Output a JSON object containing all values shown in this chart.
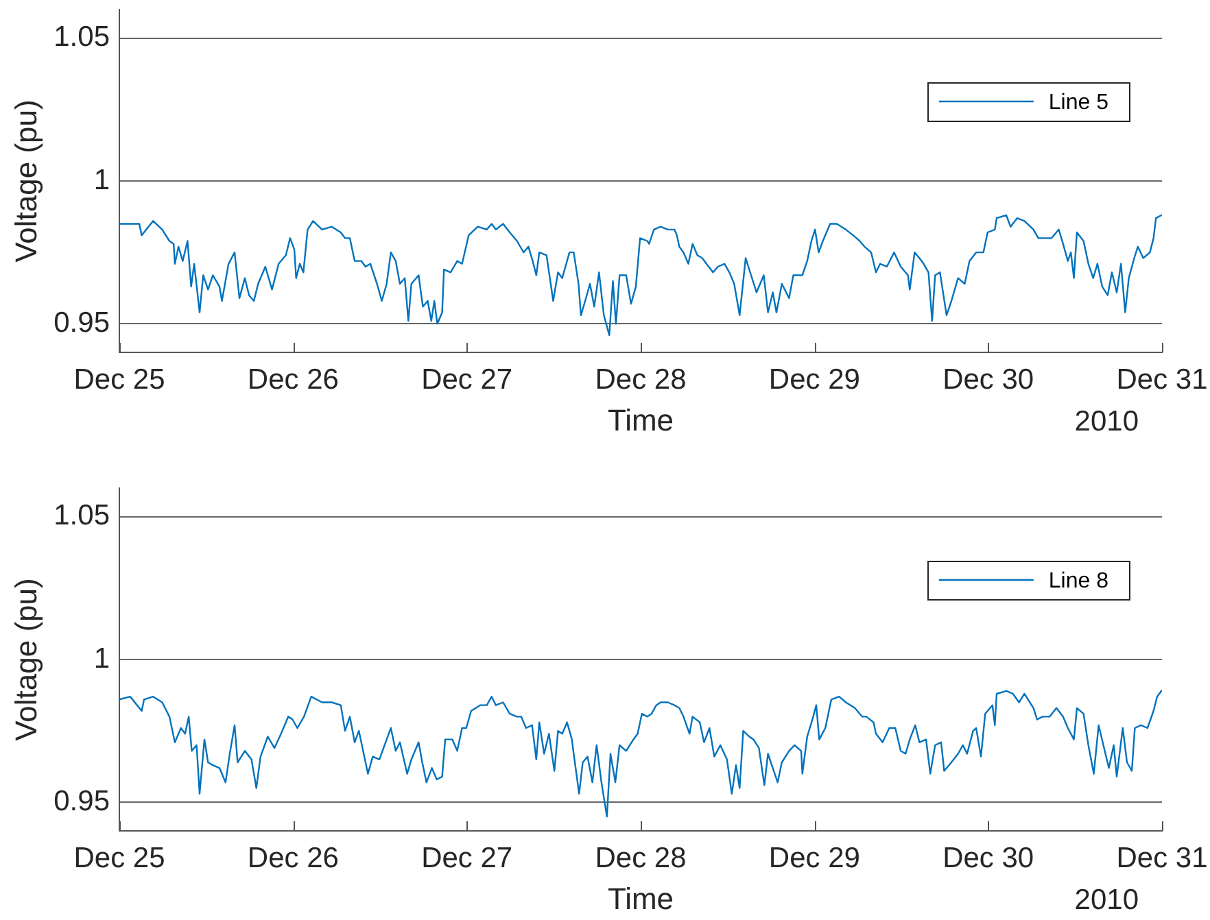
{
  "chart_data": [
    {
      "type": "line",
      "xlabel": "Time",
      "ylabel": "Voltage (pu)",
      "grid": "y",
      "legend": "top right",
      "annotations": [
        "2010"
      ],
      "xlim": [
        "2010-12-25",
        "2010-12-31"
      ],
      "xticks": [
        {
          "value": "2010-12-25",
          "label": "Dec 25"
        },
        {
          "value": "2010-12-26",
          "label": "Dec 26"
        },
        {
          "value": "2010-12-27",
          "label": "Dec 27"
        },
        {
          "value": "2010-12-28",
          "label": "Dec 28"
        },
        {
          "value": "2010-12-29",
          "label": "Dec 29"
        },
        {
          "value": "2010-12-30",
          "label": "Dec 30"
        },
        {
          "value": "2010-12-31",
          "label": "Dec 31"
        }
      ],
      "ylim": [
        0.94,
        1.06
      ],
      "yticks": [
        0.95,
        1,
        1.05
      ],
      "x": [
        "2010-12-25T00:00",
        "2010-12-25T01:30",
        "2010-12-25T02:45",
        "2010-12-25T03:05",
        "2010-12-25T04:40",
        "2010-12-25T05:55",
        "2010-12-25T06:55",
        "2010-12-25T07:30",
        "2010-12-25T07:40",
        "2010-12-25T08:10",
        "2010-12-25T08:45",
        "2010-12-25T09:25",
        "2010-12-25T09:55",
        "2010-12-25T10:20",
        "2010-12-25T11:05",
        "2010-12-25T11:35",
        "2010-12-25T12:15",
        "2010-12-25T12:55",
        "2010-12-25T13:50",
        "2010-12-25T14:10",
        "2010-12-25T15:05",
        "2010-12-25T15:55",
        "2010-12-25T16:35",
        "2010-12-25T17:20",
        "2010-12-25T17:55",
        "2010-12-25T18:35",
        "2010-12-25T19:10",
        "2010-12-25T20:10",
        "2010-12-25T21:05",
        "2010-12-25T22:00",
        "2010-12-25T23:00",
        "2010-12-25T23:35",
        "2010-12-26T00:10",
        "2010-12-26T00:25",
        "2010-12-26T00:55",
        "2010-12-26T01:25",
        "2010-12-26T02:00",
        "2010-12-26T02:45",
        "2010-12-26T04:00",
        "2010-12-26T05:20",
        "2010-12-26T06:35",
        "2010-12-26T07:10",
        "2010-12-26T07:50",
        "2010-12-26T08:30",
        "2010-12-26T09:25",
        "2010-12-26T10:00",
        "2010-12-26T10:40",
        "2010-12-26T11:35",
        "2010-12-26T12:15",
        "2010-12-26T12:55",
        "2010-12-26T13:30",
        "2010-12-26T14:10",
        "2010-12-26T14:45",
        "2010-12-26T15:25",
        "2010-12-26T15:55",
        "2010-12-26T16:20",
        "2010-12-26T17:20",
        "2010-12-26T17:55",
        "2010-12-26T18:35",
        "2010-12-26T19:05",
        "2010-12-26T19:30",
        "2010-12-26T19:55",
        "2010-12-26T20:35",
        "2010-12-26T20:50",
        "2010-12-26T21:45",
        "2010-12-26T22:40",
        "2010-12-26T23:20",
        "2010-12-27T00:15",
        "2010-12-27T01:30",
        "2010-12-27T02:45",
        "2010-12-27T03:25",
        "2010-12-27T04:00",
        "2010-12-27T05:00",
        "2010-12-27T05:55",
        "2010-12-27T06:55",
        "2010-12-27T07:50",
        "2010-12-27T08:30",
        "2010-12-27T09:05",
        "2010-12-27T09:35",
        "2010-12-27T10:00",
        "2010-12-27T11:00",
        "2010-12-27T11:55",
        "2010-12-27T12:35",
        "2010-12-27T13:10",
        "2010-12-27T14:10",
        "2010-12-27T14:45",
        "2010-12-27T15:25",
        "2010-12-27T15:45",
        "2010-12-27T16:20",
        "2010-12-27T17:00",
        "2010-12-27T17:35",
        "2010-12-27T18:15",
        "2010-12-27T18:55",
        "2010-12-27T19:40",
        "2010-12-27T20:10",
        "2010-12-27T20:35",
        "2010-12-27T21:05",
        "2010-12-27T22:00",
        "2010-12-27T22:40",
        "2010-12-27T23:20",
        "2010-12-27T23:55",
        "2010-12-28T00:55",
        "2010-12-28T01:10",
        "2010-12-28T01:50",
        "2010-12-28T02:45",
        "2010-12-28T03:45",
        "2010-12-28T04:40",
        "2010-12-28T05:00",
        "2010-12-28T05:20",
        "2010-12-28T05:55",
        "2010-12-28T06:35",
        "2010-12-28T07:10",
        "2010-12-28T07:50",
        "2010-12-28T08:30",
        "2010-12-28T09:05",
        "2010-12-28T10:00",
        "2010-12-28T10:40",
        "2010-12-28T11:35",
        "2010-12-28T12:15",
        "2010-12-28T12:55",
        "2010-12-28T13:40",
        "2010-12-28T14:30",
        "2010-12-28T15:15",
        "2010-12-28T16:00",
        "2010-12-28T17:00",
        "2010-12-28T17:35",
        "2010-12-28T18:15",
        "2010-12-28T18:45",
        "2010-12-28T19:30",
        "2010-12-28T20:30",
        "2010-12-28T21:05",
        "2010-12-28T22:20",
        "2010-12-28T23:00",
        "2010-12-28T23:35",
        "2010-12-29T00:05",
        "2010-12-29T00:35",
        "2010-12-29T01:10",
        "2010-12-29T02:10",
        "2010-12-29T03:05",
        "2010-12-29T04:20",
        "2010-12-29T05:20",
        "2010-12-29T06:15",
        "2010-12-29T06:55",
        "2010-12-29T07:50",
        "2010-12-29T08:30",
        "2010-12-29T09:05",
        "2010-12-29T10:00",
        "2010-12-29T11:00",
        "2010-12-29T11:55",
        "2010-12-29T12:55",
        "2010-12-29T13:10",
        "2010-12-29T13:50",
        "2010-12-29T14:30",
        "2010-12-29T15:05",
        "2010-12-29T15:45",
        "2010-12-29T16:15",
        "2010-12-29T16:40",
        "2010-12-29T17:20",
        "2010-12-29T18:15",
        "2010-12-29T18:55",
        "2010-12-29T19:50",
        "2010-12-29T20:45",
        "2010-12-29T21:25",
        "2010-12-29T22:20",
        "2010-12-29T23:20",
        "2010-12-29T23:55",
        "2010-12-30T00:55",
        "2010-12-30T01:10",
        "2010-12-30T02:30",
        "2010-12-30T03:05",
        "2010-12-30T04:00",
        "2010-12-30T05:00",
        "2010-12-30T06:15",
        "2010-12-30T06:55",
        "2010-12-30T07:50",
        "2010-12-30T08:45",
        "2010-12-30T09:45",
        "2010-12-30T10:20",
        "2010-12-30T11:00",
        "2010-12-30T11:25",
        "2010-12-30T11:50",
        "2010-12-30T12:15",
        "2010-12-30T13:10",
        "2010-12-30T13:50",
        "2010-12-30T14:30",
        "2010-12-30T15:05",
        "2010-12-30T15:45",
        "2010-12-30T16:30",
        "2010-12-30T17:05",
        "2010-12-30T17:45",
        "2010-12-30T18:20",
        "2010-12-30T18:55",
        "2010-12-30T19:25",
        "2010-12-30T20:10",
        "2010-12-30T20:40",
        "2010-12-30T21:25",
        "2010-12-30T22:20",
        "2010-12-30T22:50",
        "2010-12-30T23:10",
        "2010-12-30T23:55"
      ],
      "series": [
        {
          "name": "Line 5",
          "color": "#0072bd",
          "values": [
            0.985,
            0.985,
            0.985,
            0.981,
            0.986,
            0.983,
            0.979,
            0.978,
            0.971,
            0.977,
            0.972,
            0.979,
            0.963,
            0.971,
            0.954,
            0.967,
            0.962,
            0.967,
            0.963,
            0.958,
            0.971,
            0.975,
            0.959,
            0.966,
            0.96,
            0.958,
            0.964,
            0.97,
            0.962,
            0.971,
            0.974,
            0.98,
            0.976,
            0.966,
            0.971,
            0.968,
            0.983,
            0.986,
            0.983,
            0.984,
            0.982,
            0.98,
            0.98,
            0.972,
            0.972,
            0.97,
            0.971,
            0.964,
            0.958,
            0.964,
            0.975,
            0.972,
            0.964,
            0.966,
            0.951,
            0.964,
            0.967,
            0.956,
            0.958,
            0.951,
            0.958,
            0.95,
            0.954,
            0.969,
            0.968,
            0.972,
            0.971,
            0.981,
            0.984,
            0.983,
            0.985,
            0.983,
            0.985,
            0.982,
            0.979,
            0.975,
            0.977,
            0.972,
            0.967,
            0.975,
            0.974,
            0.958,
            0.968,
            0.966,
            0.975,
            0.975,
            0.964,
            0.953,
            0.958,
            0.964,
            0.956,
            0.968,
            0.953,
            0.946,
            0.965,
            0.95,
            0.967,
            0.967,
            0.957,
            0.963,
            0.98,
            0.979,
            0.978,
            0.983,
            0.984,
            0.983,
            0.983,
            0.981,
            0.977,
            0.975,
            0.971,
            0.978,
            0.974,
            0.973,
            0.971,
            0.968,
            0.97,
            0.971,
            0.968,
            0.964,
            0.953,
            0.973,
            0.967,
            0.961,
            0.967,
            0.954,
            0.961,
            0.954,
            0.964,
            0.959,
            0.967,
            0.967,
            0.972,
            0.979,
            0.983,
            0.975,
            0.979,
            0.985,
            0.985,
            0.983,
            0.981,
            0.979,
            0.977,
            0.975,
            0.968,
            0.971,
            0.97,
            0.975,
            0.97,
            0.967,
            0.962,
            0.975,
            0.973,
            0.971,
            0.968,
            0.951,
            0.967,
            0.968,
            0.953,
            0.958,
            0.966,
            0.964,
            0.972,
            0.975,
            0.975,
            0.982,
            0.983,
            0.987,
            0.988,
            0.984,
            0.987,
            0.986,
            0.983,
            0.98,
            0.98,
            0.98,
            0.983,
            0.978,
            0.972,
            0.975,
            0.966,
            0.982,
            0.979,
            0.971,
            0.966,
            0.971,
            0.963,
            0.96,
            0.968,
            0.961,
            0.971,
            0.954,
            0.966,
            0.973,
            0.977,
            0.973,
            0.975,
            0.98,
            0.987,
            0.988
          ]
        }
      ]
    },
    {
      "type": "line",
      "xlabel": "Time",
      "ylabel": "Voltage (pu)",
      "grid": "y",
      "legend": "top right",
      "annotations": [
        "2010"
      ],
      "xlim": [
        "2010-12-25",
        "2010-12-31"
      ],
      "xticks": [
        {
          "value": "2010-12-25",
          "label": "Dec 25"
        },
        {
          "value": "2010-12-26",
          "label": "Dec 26"
        },
        {
          "value": "2010-12-27",
          "label": "Dec 27"
        },
        {
          "value": "2010-12-28",
          "label": "Dec 28"
        },
        {
          "value": "2010-12-29",
          "label": "Dec 29"
        },
        {
          "value": "2010-12-30",
          "label": "Dec 30"
        },
        {
          "value": "2010-12-31",
          "label": "Dec 31"
        }
      ],
      "ylim": [
        0.94,
        1.06
      ],
      "yticks": [
        0.95,
        1,
        1.05
      ],
      "x": [
        "2010-12-25T00:00",
        "2010-12-25T01:30",
        "2010-12-25T03:05",
        "2010-12-25T03:25",
        "2010-12-25T04:40",
        "2010-12-25T05:55",
        "2010-12-25T06:55",
        "2010-12-25T07:40",
        "2010-12-25T08:30",
        "2010-12-25T09:05",
        "2010-12-25T09:35",
        "2010-12-25T10:00",
        "2010-12-25T10:40",
        "2010-12-25T11:05",
        "2010-12-25T11:45",
        "2010-12-25T12:15",
        "2010-12-25T12:55",
        "2010-12-25T13:50",
        "2010-12-25T14:40",
        "2010-12-25T15:15",
        "2010-12-25T15:55",
        "2010-12-25T16:20",
        "2010-12-25T17:20",
        "2010-12-25T18:15",
        "2010-12-25T18:55",
        "2010-12-25T19:30",
        "2010-12-25T20:30",
        "2010-12-25T21:25",
        "2010-12-25T22:20",
        "2010-12-25T23:20",
        "2010-12-25T23:55",
        "2010-12-26T00:35",
        "2010-12-26T01:30",
        "2010-12-26T02:30",
        "2010-12-26T04:00",
        "2010-12-26T05:20",
        "2010-12-26T06:35",
        "2010-12-26T07:10",
        "2010-12-26T07:50",
        "2010-12-26T08:30",
        "2010-12-26T09:05",
        "2010-12-26T09:45",
        "2010-12-26T10:20",
        "2010-12-26T11:00",
        "2010-12-26T11:55",
        "2010-12-26T12:55",
        "2010-12-26T13:30",
        "2010-12-26T14:10",
        "2010-12-26T14:45",
        "2010-12-26T15:45",
        "2010-12-26T16:20",
        "2010-12-26T17:20",
        "2010-12-26T17:50",
        "2010-12-26T18:25",
        "2010-12-26T19:10",
        "2010-12-26T19:50",
        "2010-12-26T20:35",
        "2010-12-26T21:00",
        "2010-12-26T22:00",
        "2010-12-26T22:40",
        "2010-12-26T23:20",
        "2010-12-26T23:55",
        "2010-12-27T00:35",
        "2010-12-27T01:50",
        "2010-12-27T02:45",
        "2010-12-27T03:25",
        "2010-12-27T04:00",
        "2010-12-27T05:00",
        "2010-12-27T05:55",
        "2010-12-27T06:55",
        "2010-12-27T07:30",
        "2010-12-27T08:10",
        "2010-12-27T09:00",
        "2010-12-27T09:35",
        "2010-12-27T10:00",
        "2010-12-27T10:40",
        "2010-12-27T11:20",
        "2010-12-27T12:05",
        "2010-12-27T12:35",
        "2010-12-27T13:10",
        "2010-12-27T13:50",
        "2010-12-27T14:30",
        "2010-12-27T14:45",
        "2010-12-27T15:30",
        "2010-12-27T16:00",
        "2010-12-27T16:40",
        "2010-12-27T17:20",
        "2010-12-27T17:55",
        "2010-12-27T18:35",
        "2010-12-27T19:20",
        "2010-12-27T19:50",
        "2010-12-27T20:30",
        "2010-12-27T21:05",
        "2010-12-27T22:00",
        "2010-12-27T23:00",
        "2010-12-27T23:35",
        "2010-12-28T00:10",
        "2010-12-28T00:55",
        "2010-12-28T01:30",
        "2010-12-28T02:10",
        "2010-12-28T02:45",
        "2010-12-28T03:45",
        "2010-12-28T04:40",
        "2010-12-28T05:20",
        "2010-12-28T05:55",
        "2010-12-28T06:45",
        "2010-12-28T07:10",
        "2010-12-28T08:10",
        "2010-12-28T08:45",
        "2010-12-28T09:30",
        "2010-12-28T10:10",
        "2010-12-28T11:00",
        "2010-12-28T11:55",
        "2010-12-28T12:35",
        "2010-12-28T13:10",
        "2010-12-28T13:40",
        "2010-12-28T14:10",
        "2010-12-28T15:00",
        "2010-12-28T15:35",
        "2010-12-28T16:20",
        "2010-12-28T17:05",
        "2010-12-28T17:35",
        "2010-12-28T18:15",
        "2010-12-28T18:55",
        "2010-12-28T19:30",
        "2010-12-28T20:30",
        "2010-12-28T21:15",
        "2010-12-28T22:10",
        "2010-12-28T22:20",
        "2010-12-28T23:00",
        "2010-12-28T23:50",
        "2010-12-29T00:15",
        "2010-12-29T00:40",
        "2010-12-29T01:30",
        "2010-12-29T02:20",
        "2010-12-29T03:25",
        "2010-12-29T04:20",
        "2010-12-29T05:35",
        "2010-12-29T06:35",
        "2010-12-29T07:10",
        "2010-12-29T08:10",
        "2010-12-29T08:30",
        "2010-12-29T09:25",
        "2010-12-29T10:20",
        "2010-12-29T11:10",
        "2010-12-29T11:55",
        "2010-12-29T12:35",
        "2010-12-29T13:10",
        "2010-12-29T13:55",
        "2010-12-29T14:30",
        "2010-12-29T15:25",
        "2010-12-29T16:00",
        "2010-12-29T16:40",
        "2010-12-29T17:30",
        "2010-12-29T17:55",
        "2010-12-29T18:55",
        "2010-12-29T19:50",
        "2010-12-29T20:30",
        "2010-12-29T21:05",
        "2010-12-29T21:55",
        "2010-12-29T22:20",
        "2010-12-29T23:00",
        "2010-12-29T23:35",
        "2010-12-30T00:35",
        "2010-12-30T00:55",
        "2010-12-30T01:10",
        "2010-12-30T02:30",
        "2010-12-30T03:25",
        "2010-12-30T04:15",
        "2010-12-30T05:00",
        "2010-12-30T06:15",
        "2010-12-30T06:45",
        "2010-12-30T07:30",
        "2010-12-30T08:30",
        "2010-12-30T09:25",
        "2010-12-30T10:20",
        "2010-12-30T11:00",
        "2010-12-30T11:50",
        "2010-12-30T12:15",
        "2010-12-30T13:10",
        "2010-12-30T13:50",
        "2010-12-30T14:35",
        "2010-12-30T15:15",
        "2010-12-30T16:00",
        "2010-12-30T16:40",
        "2010-12-30T17:20",
        "2010-12-30T17:45",
        "2010-12-30T18:35",
        "2010-12-30T19:10",
        "2010-12-30T19:50",
        "2010-12-30T20:15",
        "2010-12-30T21:05",
        "2010-12-30T22:00",
        "2010-12-30T22:50",
        "2010-12-30T23:20",
        "2010-12-30T23:55"
      ],
      "series": [
        {
          "name": "Line 8",
          "color": "#0072bd",
          "values": [
            0.986,
            0.987,
            0.982,
            0.986,
            0.987,
            0.985,
            0.98,
            0.971,
            0.976,
            0.974,
            0.98,
            0.968,
            0.97,
            0.953,
            0.972,
            0.964,
            0.963,
            0.962,
            0.957,
            0.967,
            0.977,
            0.964,
            0.968,
            0.965,
            0.955,
            0.966,
            0.973,
            0.969,
            0.974,
            0.98,
            0.979,
            0.976,
            0.98,
            0.987,
            0.985,
            0.985,
            0.984,
            0.975,
            0.98,
            0.971,
            0.975,
            0.967,
            0.96,
            0.966,
            0.965,
            0.972,
            0.976,
            0.968,
            0.971,
            0.96,
            0.965,
            0.971,
            0.964,
            0.957,
            0.962,
            0.958,
            0.959,
            0.972,
            0.972,
            0.968,
            0.976,
            0.976,
            0.982,
            0.984,
            0.984,
            0.987,
            0.984,
            0.985,
            0.981,
            0.98,
            0.98,
            0.976,
            0.977,
            0.965,
            0.978,
            0.967,
            0.974,
            0.961,
            0.975,
            0.974,
            0.978,
            0.972,
            0.967,
            0.953,
            0.964,
            0.966,
            0.957,
            0.97,
            0.957,
            0.945,
            0.967,
            0.957,
            0.97,
            0.968,
            0.972,
            0.974,
            0.981,
            0.98,
            0.981,
            0.984,
            0.985,
            0.985,
            0.984,
            0.983,
            0.98,
            0.974,
            0.98,
            0.978,
            0.971,
            0.976,
            0.966,
            0.97,
            0.965,
            0.953,
            0.963,
            0.955,
            0.975,
            0.973,
            0.972,
            0.969,
            0.956,
            0.967,
            0.962,
            0.957,
            0.964,
            0.968,
            0.97,
            0.968,
            0.96,
            0.973,
            0.98,
            0.984,
            0.972,
            0.976,
            0.986,
            0.987,
            0.985,
            0.983,
            0.98,
            0.98,
            0.978,
            0.974,
            0.971,
            0.976,
            0.976,
            0.968,
            0.967,
            0.972,
            0.977,
            0.971,
            0.972,
            0.96,
            0.97,
            0.971,
            0.961,
            0.964,
            0.967,
            0.97,
            0.967,
            0.975,
            0.976,
            0.966,
            0.981,
            0.984,
            0.977,
            0.988,
            0.989,
            0.988,
            0.985,
            0.988,
            0.983,
            0.979,
            0.98,
            0.98,
            0.983,
            0.98,
            0.976,
            0.972,
            0.983,
            0.981,
            0.97,
            0.96,
            0.977,
            0.969,
            0.962,
            0.97,
            0.959,
            0.976,
            0.964,
            0.961,
            0.976,
            0.977,
            0.976,
            0.982,
            0.987,
            0.989
          ]
        }
      ]
    }
  ]
}
